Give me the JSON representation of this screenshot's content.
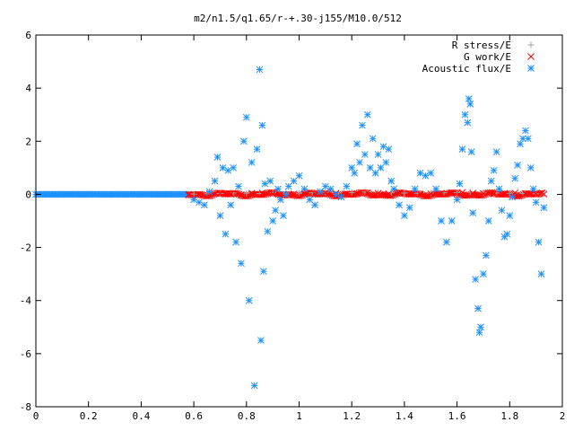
{
  "chart_data": {
    "type": "scatter",
    "title": "m2/n1.5/q1.65/r-+.30-j155/M10.0/512",
    "xlabel": "",
    "ylabel": "",
    "xlim": [
      0,
      2
    ],
    "ylim": [
      -8,
      6
    ],
    "x_ticks": [
      "0",
      "0.2",
      "0.4",
      "0.6",
      "0.8",
      "1",
      "1.2",
      "1.4",
      "1.6",
      "1.8",
      "2"
    ],
    "x_tick_values": [
      0,
      0.2,
      0.4,
      0.6,
      0.8,
      1.0,
      1.2,
      1.4,
      1.6,
      1.8,
      2.0
    ],
    "y_ticks": [
      "6",
      "4",
      "2",
      "0",
      "-2",
      "-4",
      "-6",
      "-8"
    ],
    "y_tick_values": [
      6,
      4,
      2,
      0,
      -2,
      -4,
      -6,
      -8
    ],
    "grid": false,
    "legend_position": "top-right",
    "series": [
      {
        "name": "R stress/E",
        "marker": "plus",
        "color": "#a0a0a0",
        "x": [
          0.6,
          0.65,
          0.7,
          0.75,
          0.8,
          0.85,
          0.9,
          0.95,
          1.0,
          1.05,
          1.1,
          1.15,
          1.2,
          1.25,
          1.3,
          1.35,
          1.4,
          1.45,
          1.5,
          1.55,
          1.6,
          1.65,
          1.7,
          1.75,
          1.8,
          1.85,
          1.9
        ],
        "y": [
          0.01,
          0.02,
          0.03,
          0.05,
          0.04,
          0.03,
          0.06,
          0.05,
          0.04,
          0.06,
          0.08,
          0.05,
          0.07,
          0.09,
          0.08,
          0.06,
          0.05,
          0.04,
          0.05,
          0.06,
          0.07,
          0.08,
          0.06,
          0.05,
          0.04,
          0.03,
          0.02
        ]
      },
      {
        "name": "G work/E",
        "marker": "cross",
        "color": "#ff0000",
        "x": [
          0.58,
          0.62,
          0.66,
          0.7,
          0.74,
          0.78,
          0.82,
          0.86,
          0.9,
          0.94,
          0.98,
          1.02,
          1.06,
          1.1,
          1.14,
          1.18,
          1.22,
          1.26,
          1.3,
          1.34,
          1.38,
          1.42,
          1.46,
          1.5,
          1.54,
          1.58,
          1.62,
          1.66,
          1.7,
          1.74,
          1.78,
          1.82,
          1.86,
          1.9,
          1.93
        ],
        "y": [
          -0.02,
          -0.01,
          0.02,
          0.03,
          0.01,
          -0.02,
          0.04,
          0.05,
          0.02,
          -0.03,
          0.01,
          0.03,
          0.02,
          0.05,
          0.04,
          0.02,
          0.03,
          0.06,
          0.04,
          0.02,
          0.05,
          0.03,
          0.01,
          0.02,
          0.03,
          0.05,
          0.07,
          0.04,
          0.03,
          0.02,
          0.04,
          0.05,
          0.03,
          0.02,
          0.01
        ]
      },
      {
        "name": "Acoustic flux/E",
        "marker": "star",
        "color": "#1e90ff",
        "x": [
          0.6,
          0.62,
          0.64,
          0.66,
          0.68,
          0.69,
          0.7,
          0.71,
          0.72,
          0.73,
          0.74,
          0.75,
          0.76,
          0.77,
          0.78,
          0.79,
          0.8,
          0.81,
          0.82,
          0.83,
          0.84,
          0.85,
          0.855,
          0.86,
          0.865,
          0.87,
          0.88,
          0.89,
          0.9,
          0.91,
          0.92,
          0.93,
          0.94,
          0.95,
          0.96,
          0.98,
          1.0,
          1.02,
          1.04,
          1.06,
          1.08,
          1.1,
          1.12,
          1.14,
          1.16,
          1.18,
          1.2,
          1.21,
          1.22,
          1.23,
          1.24,
          1.25,
          1.26,
          1.27,
          1.28,
          1.29,
          1.3,
          1.31,
          1.32,
          1.33,
          1.34,
          1.35,
          1.36,
          1.38,
          1.4,
          1.42,
          1.44,
          1.46,
          1.48,
          1.5,
          1.52,
          1.54,
          1.56,
          1.58,
          1.6,
          1.61,
          1.62,
          1.63,
          1.64,
          1.645,
          1.65,
          1.655,
          1.66,
          1.67,
          1.68,
          1.685,
          1.69,
          1.7,
          1.71,
          1.72,
          1.73,
          1.74,
          1.75,
          1.76,
          1.77,
          1.78,
          1.79,
          1.8,
          1.81,
          1.82,
          1.83,
          1.84,
          1.85,
          1.86,
          1.87,
          1.88,
          1.89,
          1.9,
          1.91,
          1.92,
          1.93
        ],
        "y": [
          -0.2,
          -0.3,
          -0.4,
          0.1,
          0.5,
          1.4,
          -0.8,
          1.0,
          -1.5,
          0.9,
          -0.4,
          1.0,
          -1.8,
          0.3,
          -2.6,
          2.0,
          2.9,
          -4.0,
          1.2,
          -7.2,
          1.7,
          4.7,
          -5.5,
          2.6,
          -2.9,
          0.4,
          -1.4,
          0.5,
          -1.0,
          -0.6,
          0.2,
          -0.2,
          -0.8,
          0.0,
          0.3,
          0.5,
          0.7,
          0.2,
          -0.2,
          -0.4,
          0.1,
          0.3,
          0.2,
          0.0,
          -0.1,
          0.3,
          1.0,
          0.8,
          1.9,
          1.2,
          2.6,
          1.5,
          3.0,
          1.0,
          2.1,
          0.8,
          1.5,
          1.0,
          1.8,
          1.2,
          1.7,
          0.5,
          0.2,
          -0.4,
          -0.8,
          -0.5,
          0.2,
          0.8,
          0.7,
          0.8,
          0.2,
          -1.0,
          -1.8,
          -1.0,
          -0.2,
          0.4,
          1.7,
          3.0,
          2.7,
          3.6,
          3.4,
          1.6,
          -0.7,
          -3.2,
          -4.3,
          -5.2,
          -5.0,
          -3.0,
          -2.3,
          -1.0,
          0.5,
          0.9,
          1.6,
          0.2,
          -0.6,
          -1.6,
          -1.5,
          -0.8,
          -0.1,
          0.6,
          1.1,
          1.9,
          2.1,
          2.4,
          2.1,
          1.0,
          0.2,
          -0.3,
          -1.8,
          -3.0,
          -0.5
        ]
      }
    ]
  }
}
